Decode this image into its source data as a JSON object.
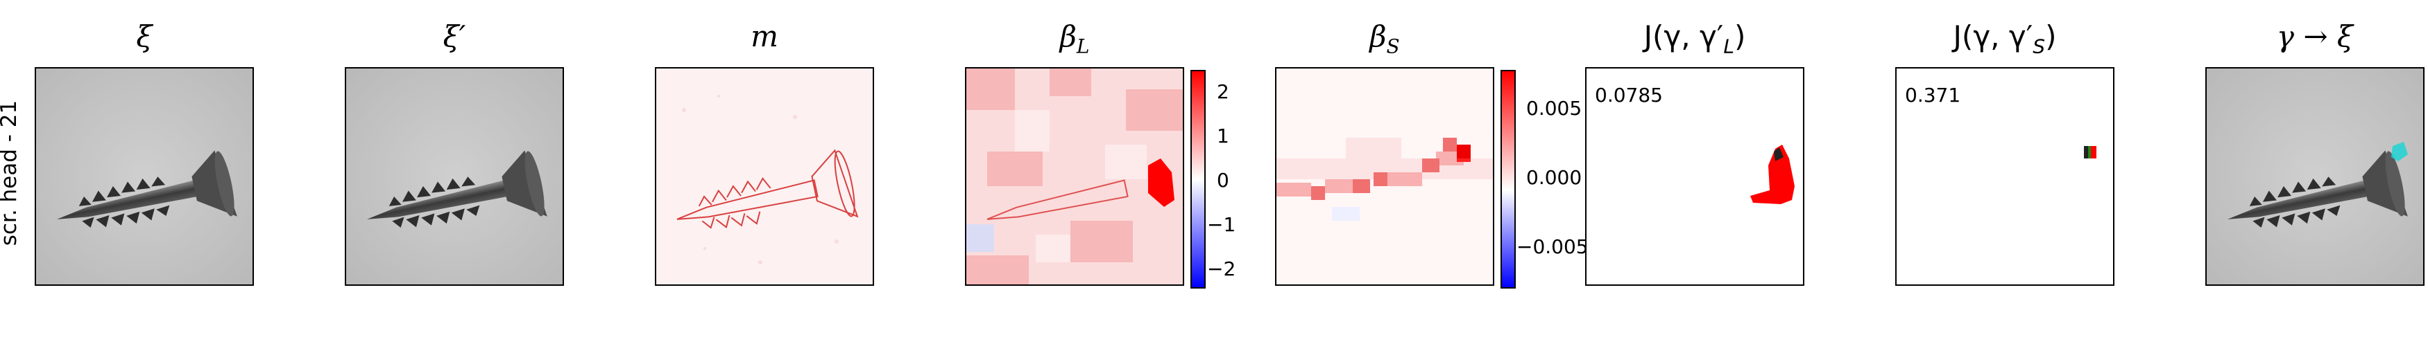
{
  "row_label": "scr. head - 21",
  "panels": [
    {
      "title": "ξ",
      "kind": "image"
    },
    {
      "title": "ξ′",
      "kind": "image"
    },
    {
      "title": "m",
      "kind": "heatmap"
    },
    {
      "title": "β_L",
      "kind": "heatmap"
    },
    {
      "title": "β_S",
      "kind": "heatmap"
    },
    {
      "title": "J(γ, γ′_L)",
      "kind": "mask"
    },
    {
      "title": "J(γ, γ′_S)",
      "kind": "mask"
    },
    {
      "title": "γ → ξ",
      "kind": "image"
    }
  ],
  "titles": {
    "p1": "ξ",
    "p2": "ξ′",
    "p3": "m",
    "p4_main": "β",
    "p4_sub": "L",
    "p5_main": "β",
    "p5_sub": "S",
    "p6": "J(γ, γ′",
    "p6_sub": "L",
    "p6_end": ")",
    "p7": "J(γ, γ′",
    "p7_sub": "S",
    "p7_end": ")",
    "p8": "γ → ξ"
  },
  "scores": {
    "p6": "0.0785",
    "p7": "0.371"
  },
  "colorbar_L": {
    "ticks": [
      "2",
      "1",
      "0",
      "−1",
      "−2"
    ],
    "colors": {
      "max": "#ff0000",
      "mid": "#ffffff",
      "min": "#0000ff"
    }
  },
  "colorbar_S": {
    "ticks": [
      "0.005",
      "0.000",
      "−0.005"
    ],
    "colors": {
      "max": "#ff0000",
      "mid": "#ffffff",
      "min": "#0000ff"
    }
  },
  "colors": {
    "bg_gray": "#c9c9c9",
    "screw": "#4a4a4a",
    "highlight": "#1ed3d3",
    "mask": "#ff0000"
  }
}
